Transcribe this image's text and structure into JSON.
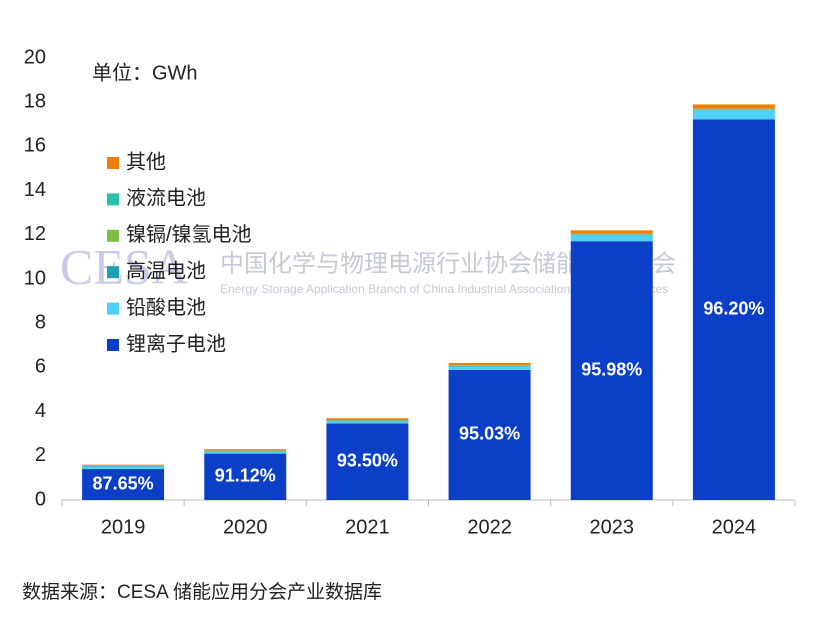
{
  "chart_data": {
    "type": "stacked_bar",
    "unit_label": "单位：GWh",
    "source": "数据来源：CESA 储能应用分会产业数据库",
    "watermark": {
      "logo": "CESA",
      "name": "中国化学与物理电源行业协会储能应用分会",
      "english": "Energy Storage Application Branch of China Industrial Association of Power Sources"
    },
    "categories": [
      "2019",
      "2020",
      "2021",
      "2022",
      "2023",
      "2024"
    ],
    "series": [
      {
        "name": "锂离子电池",
        "color": "#0b3fc8",
        "values": [
          1.4,
          2.1,
          3.46,
          5.89,
          11.71,
          17.22
        ]
      },
      {
        "name": "铅酸电池",
        "color": "#4fd0f5",
        "values": [
          0.12,
          0.09,
          0.1,
          0.15,
          0.27,
          0.42
        ]
      },
      {
        "name": "高温电池",
        "color": "#1f9fb4",
        "values": [
          0.02,
          0.02,
          0.02,
          0.02,
          0.02,
          0.02
        ]
      },
      {
        "name": "镍镉/镍氢电池",
        "color": "#7ac143",
        "values": [
          0.02,
          0.02,
          0.02,
          0.02,
          0.02,
          0.02
        ]
      },
      {
        "name": "液流电池",
        "color": "#2bbfae",
        "values": [
          0.01,
          0.01,
          0.02,
          0.02,
          0.03,
          0.02
        ]
      },
      {
        "name": "其他",
        "color": "#f07f09",
        "values": [
          0.03,
          0.06,
          0.08,
          0.1,
          0.15,
          0.2
        ]
      }
    ],
    "share_labels": [
      "87.65%",
      "91.12%",
      "93.50%",
      "95.03%",
      "95.98%",
      "96.20%"
    ],
    "ylim": [
      0,
      20
    ],
    "yticks": [
      0,
      2,
      4,
      6,
      8,
      10,
      12,
      14,
      16,
      18,
      20
    ],
    "grid": false
  }
}
